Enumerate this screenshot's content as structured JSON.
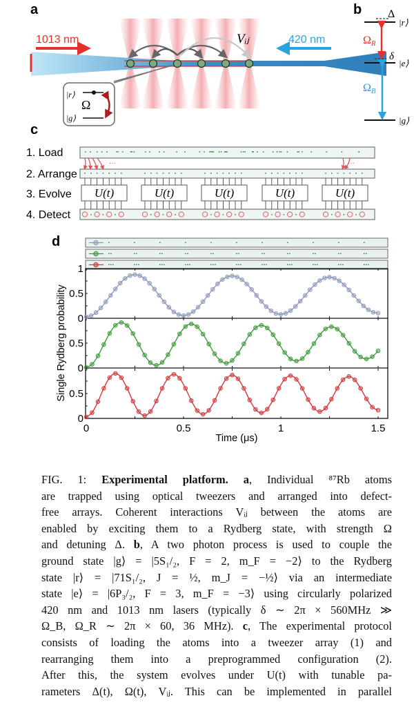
{
  "panel_labels": {
    "a": "a",
    "b": "b",
    "c": "c",
    "d": "d"
  },
  "panel_a": {
    "laser_left": "1013 nm",
    "laser_right": "420 nm",
    "interaction_label": "Vᵢⱼ",
    "inset_upper_state": "|r⟩",
    "inset_lower_state": "|g⟩",
    "inset_coupling": "Ω",
    "colors": {
      "red_laser": "#e8302a",
      "blue_laser": "#29a3dd",
      "atom": "#7fa882"
    }
  },
  "panel_b": {
    "detuning_upper": "Δ",
    "detuning_lower": "δ",
    "state_r": "|r⟩",
    "state_e": "|e⟩",
    "state_g": "|g⟩",
    "rabi_red": "Ω_R",
    "rabi_red_main": "Ω",
    "rabi_red_sub": "R",
    "rabi_blue_main": "Ω",
    "rabi_blue_sub": "B"
  },
  "panel_c": {
    "steps": [
      "1. Load",
      "2. Arrange",
      "3. Evolve",
      "4. Detect"
    ],
    "evolve_block_label": "U(t)",
    "ellipsis": "···"
  },
  "chart_data": {
    "type": "line",
    "xlabel": "Time (μs)",
    "ylabel": "Single Rydberg probability",
    "xlim": [
      0,
      1.5
    ],
    "ylim": [
      0,
      1
    ],
    "x_ticks": [
      "0",
      "0.5",
      "1",
      "1.5"
    ],
    "y_ticks_top": [
      "1",
      "0.5",
      "0"
    ],
    "y_ticks_other": [
      "0.5",
      "0"
    ],
    "grid": false,
    "layout": "three stacked panels sharing x axis",
    "series": [
      {
        "color": "#8e9ab8",
        "x_step": 0.025,
        "values": [
          0.03,
          0.052,
          0.114,
          0.209,
          0.329,
          0.46,
          0.591,
          0.708,
          0.801,
          0.859,
          0.879,
          0.857,
          0.797,
          0.704,
          0.588,
          0.46,
          0.333,
          0.22,
          0.13,
          0.074,
          0.055,
          0.076,
          0.134,
          0.224,
          0.336,
          0.46,
          0.583,
          0.693,
          0.78,
          0.834,
          0.853,
          0.832,
          0.776,
          0.689,
          0.58,
          0.46,
          0.341,
          0.234,
          0.151,
          0.097,
          0.08,
          0.1,
          0.155,
          0.239,
          0.344,
          0.46,
          0.575,
          0.678,
          0.759,
          0.811,
          0.828,
          0.808,
          0.755,
          0.674,
          0.572,
          0.46,
          0.349,
          0.249,
          0.171,
          0.121,
          0.105
        ]
      },
      {
        "color": "#3e9b3a",
        "x_step": 0.03,
        "values": [
          0.01,
          0.075,
          0.244,
          0.472,
          0.698,
          0.858,
          0.916,
          0.854,
          0.693,
          0.475,
          0.261,
          0.107,
          0.053,
          0.113,
          0.269,
          0.479,
          0.686,
          0.834,
          0.887,
          0.83,
          0.682,
          0.483,
          0.286,
          0.145,
          0.096,
          0.152,
          0.295,
          0.486,
          0.675,
          0.81,
          0.858,
          0.807,
          0.671,
          0.49,
          0.311,
          0.184,
          0.14,
          0.19,
          0.32,
          0.493,
          0.664,
          0.787,
          0.829,
          0.783,
          0.66,
          0.497,
          0.337,
          0.222,
          0.183,
          0.228,
          0.345
        ]
      },
      {
        "color": "#d0393a",
        "x_step": 0.03,
        "values": [
          0.03,
          0.116,
          0.337,
          0.606,
          0.821,
          0.903,
          0.82,
          0.605,
          0.344,
          0.135,
          0.057,
          0.139,
          0.349,
          0.605,
          0.81,
          0.888,
          0.808,
          0.605,
          0.357,
          0.158,
          0.084,
          0.162,
          0.362,
          0.605,
          0.8,
          0.873,
          0.797,
          0.605,
          0.369,
          0.181,
          0.111,
          0.185,
          0.374,
          0.605,
          0.789,
          0.858,
          0.786,
          0.604,
          0.381,
          0.204,
          0.138,
          0.208,
          0.387,
          0.604,
          0.778,
          0.843,
          0.775,
          0.604,
          0.394,
          0.227,
          0.165
        ]
      }
    ]
  },
  "caption": {
    "lines": [
      [
        {
          "t": "FIG. 1: ",
          "b": false
        },
        {
          "t": "Experimental platform.",
          "b": true
        },
        {
          "t": " ",
          "b": false
        },
        {
          "t": "a",
          "b": true
        },
        {
          "t": ", Individual ⁸⁷Rb atoms",
          "b": false
        }
      ],
      [
        {
          "t": "are trapped using optical tweezers and arranged into defect-",
          "b": false
        }
      ],
      [
        {
          "t": "free arrays. Coherent interactions Vᵢⱼ between the atoms are",
          "b": false
        }
      ],
      [
        {
          "t": "enabled by exciting them to a Rydberg state, with strength Ω",
          "b": false
        }
      ],
      [
        {
          "t": "and detuning Δ. ",
          "b": false
        },
        {
          "t": "b",
          "b": true
        },
        {
          "t": ", A two photon process is used to couple the",
          "b": false
        }
      ],
      [
        {
          "t": "ground state |g⟩ = |5S₁/₂, F = 2, m_F = −2⟩ to the Rydberg",
          "b": false
        }
      ],
      [
        {
          "t": "state |r⟩ = |71S₁/₂, J = ½, m_J = −½⟩ via an intermediate",
          "b": false
        }
      ],
      [
        {
          "t": "state |e⟩ = |6P₃/₂, F = 3, m_F = −3⟩ using circularly polarized",
          "b": false
        }
      ],
      [
        {
          "t": "420 nm and 1013 nm lasers (typically δ ∼ 2π × 560MHz ≫",
          "b": false
        }
      ],
      [
        {
          "t": "Ω_B, Ω_R ∼ 2π × 60, 36 MHz). ",
          "b": false
        },
        {
          "t": "c",
          "b": true
        },
        {
          "t": ", The experimental protocol",
          "b": false
        }
      ],
      [
        {
          "t": "consists of loading the atoms into a tweezer array (1) and",
          "b": false
        }
      ],
      [
        {
          "t": "rearranging them into a preprogrammed configuration (2).",
          "b": false
        }
      ],
      [
        {
          "t": "After this, the system evolves under U(t) with tunable pa-",
          "b": false
        }
      ],
      [
        {
          "t": "rameters Δ(t), Ω(t), Vᵢⱼ. This can be implemented in parallel",
          "b": false
        }
      ]
    ]
  }
}
